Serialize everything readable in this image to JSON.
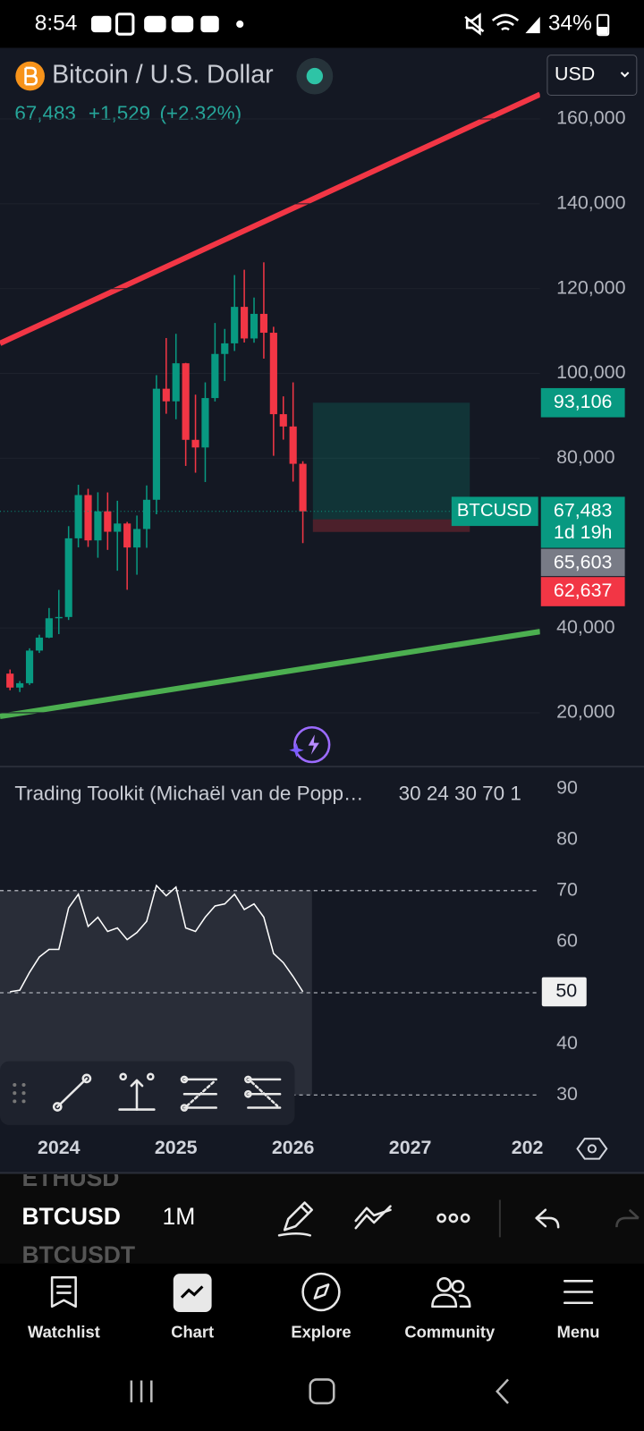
{
  "status_bar": {
    "time": "8:54",
    "battery": "34%"
  },
  "header": {
    "title": "Bitcoin / U.S. Dollar",
    "currency": "USD",
    "last": "67,483",
    "change": "+1,529",
    "change_pct": "(+2.32%)"
  },
  "chart_data": [
    {
      "type": "candlestick",
      "categories": [
        null,
        null,
        null,
        null,
        null,
        "2024",
        null,
        null,
        null,
        null,
        null,
        null,
        null,
        null,
        null,
        null,
        null,
        "2025",
        null,
        null,
        null,
        null,
        null,
        null,
        null,
        null,
        null,
        null,
        null,
        "2026",
        null,
        null,
        null,
        null,
        null,
        null,
        null,
        null,
        null,
        null,
        null,
        "2027",
        null,
        null,
        null,
        null,
        null,
        null,
        null,
        null,
        null,
        null,
        null,
        "202"
      ],
      "open": [
        29230,
        25940,
        26970,
        34660,
        37720,
        42280,
        42580,
        61130,
        71330,
        60640,
        67490,
        62680,
        64620,
        58970,
        63330,
        70220,
        96400,
        93430,
        102400,
        84350,
        82550,
        94200,
        104600,
        107100,
        115700,
        108250,
        114050,
        109600,
        90400,
        87500,
        78700,
        null,
        null,
        null,
        null,
        null,
        null,
        null,
        null,
        null,
        null,
        null,
        null,
        null,
        null,
        null,
        null,
        null,
        null,
        null,
        null,
        null,
        null,
        null
      ],
      "high": [
        30200,
        27480,
        35200,
        38400,
        44700,
        48970,
        64000,
        73750,
        72800,
        71980,
        71950,
        70000,
        65000,
        66500,
        73600,
        99600,
        108350,
        109350,
        102500,
        95000,
        97900,
        111900,
        110500,
        123200,
        124450,
        117900,
        126200,
        111000,
        94600,
        97900,
        79300,
        null,
        null,
        null,
        null,
        null,
        null,
        null,
        null,
        null,
        null,
        null,
        null,
        null,
        null,
        null,
        null,
        null,
        null,
        null,
        null,
        null,
        null,
        null
      ],
      "low": [
        25300,
        24900,
        26540,
        34100,
        37600,
        38550,
        41880,
        59000,
        59100,
        56550,
        58400,
        53500,
        49000,
        52550,
        58900,
        66800,
        90500,
        89200,
        78200,
        76600,
        74400,
        93400,
        98200,
        105300,
        107300,
        107250,
        103500,
        80600,
        84400,
        74500,
        60000,
        null,
        null,
        null,
        null,
        null,
        null,
        null,
        null,
        null,
        null,
        null,
        null,
        null,
        null,
        null,
        null,
        null,
        null,
        null,
        null,
        null,
        null,
        null
      ],
      "close": [
        25940,
        26970,
        34660,
        37720,
        42280,
        42580,
        61130,
        71330,
        60640,
        67490,
        62680,
        64620,
        58970,
        63330,
        70220,
        96400,
        93430,
        102400,
        84350,
        82550,
        94200,
        104600,
        107100,
        115700,
        108250,
        114050,
        109600,
        90400,
        87500,
        78700,
        67483,
        null,
        null,
        null,
        null,
        null,
        null,
        null,
        null,
        null,
        null,
        null,
        null,
        null,
        null,
        null,
        null,
        null,
        null,
        null,
        null,
        null,
        null,
        null
      ],
      "up_color": "#089981",
      "down_color": "#f23645",
      "ylim": [
        7742,
        176129
      ],
      "yticks": [
        {
          "value": 20000,
          "label": "20,000"
        },
        {
          "value": 40000,
          "label": "40,000"
        },
        {
          "value": 80000,
          "label": "80,000"
        },
        {
          "value": 100000,
          "label": "100,000"
        },
        {
          "value": 120000,
          "label": "120,000"
        },
        {
          "value": 140000,
          "label": "140,000"
        },
        {
          "value": 160000,
          "label": "160,000"
        }
      ],
      "grid": true,
      "last_price": {
        "value": 67483,
        "label": "67,483"
      },
      "symbol_tag": "BTCUSD",
      "countdown": "1d 19h",
      "position": {
        "target": {
          "value": 93106,
          "label": "93,106"
        },
        "entry": {
          "value": 65603,
          "label": "65,603"
        },
        "stop": {
          "value": 62637,
          "label": "62,637"
        }
      }
    },
    {
      "type": "line",
      "title": "Trading Toolkit (Michaël van de Popp…",
      "params": "30 24 30 70 1",
      "values": [
        50.2,
        50.5,
        54,
        57,
        58.5,
        58.5,
        66.6,
        69.3,
        63,
        64.8,
        62,
        62.7,
        60.4,
        61.8,
        64,
        71,
        69,
        70.7,
        62.7,
        62,
        64.8,
        67,
        67.4,
        69.3,
        66.3,
        67.4,
        64.8,
        57.7,
        55.9,
        53.2,
        50.2,
        null,
        null,
        null,
        null,
        null,
        null,
        null,
        null,
        null,
        null,
        null,
        null,
        null,
        null,
        null,
        null,
        null,
        null,
        null,
        null,
        null,
        null,
        null
      ],
      "color": "#ffffff",
      "ylim": [
        25,
        93.93
      ],
      "yticks": [
        30,
        40,
        50,
        60,
        70,
        80,
        90
      ],
      "levels": [
        70,
        50,
        30
      ],
      "last_label": "50"
    }
  ],
  "toolbar": {
    "symbols": [
      "ETHUSD",
      "BTCUSD",
      "BTCUSDT"
    ],
    "interval": "1M"
  },
  "nav": [
    "Watchlist",
    "Chart",
    "Explore",
    "Community",
    "Menu"
  ]
}
